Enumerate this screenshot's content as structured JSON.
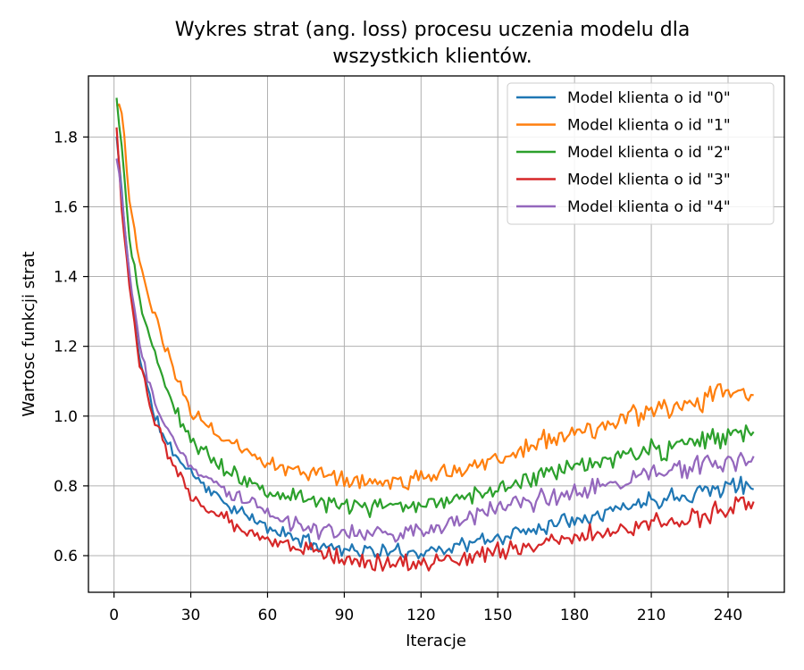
{
  "chart_data": {
    "type": "line",
    "title_lines": [
      "Wykres strat (ang. loss) procesu uczenia modelu dla",
      "wszystkich klientów."
    ],
    "xlabel": "Iteracje",
    "ylabel": "Wartosc funkcji strat",
    "xlim": [
      -10,
      262
    ],
    "ylim": [
      0.495,
      1.975
    ],
    "x_ticks": [
      0,
      30,
      60,
      90,
      120,
      150,
      180,
      210,
      240
    ],
    "y_ticks": [
      0.6,
      0.8,
      1.0,
      1.2,
      1.4,
      1.6,
      1.8
    ],
    "y_tick_labels": [
      "0.6",
      "0.8",
      "1.0",
      "1.2",
      "1.4",
      "1.6",
      "1.8"
    ],
    "grid": true,
    "legend_position": "top-right",
    "x_range": [
      1,
      250
    ],
    "series": [
      {
        "name": "Model klienta o id \"0\"",
        "color": "#1f77b4",
        "anchors": [
          [
            1,
            1.8
          ],
          [
            3,
            1.64
          ],
          [
            6,
            1.4
          ],
          [
            10,
            1.17
          ],
          [
            15,
            1.02
          ],
          [
            20,
            0.93
          ],
          [
            25,
            0.88
          ],
          [
            30,
            0.84
          ],
          [
            40,
            0.77
          ],
          [
            50,
            0.72
          ],
          [
            60,
            0.68
          ],
          [
            75,
            0.64
          ],
          [
            90,
            0.62
          ],
          [
            105,
            0.61
          ],
          [
            120,
            0.61
          ],
          [
            135,
            0.63
          ],
          [
            150,
            0.65
          ],
          [
            165,
            0.68
          ],
          [
            180,
            0.71
          ],
          [
            195,
            0.73
          ],
          [
            210,
            0.76
          ],
          [
            225,
            0.78
          ],
          [
            240,
            0.8
          ],
          [
            250,
            0.8
          ]
        ],
        "noise": 0.012,
        "seed": 11,
        "end_value": 0.79
      },
      {
        "name": "Model klienta o id \"1\"",
        "color": "#ff7f0e",
        "anchors": [
          [
            1,
            1.91
          ],
          [
            3,
            1.88
          ],
          [
            6,
            1.62
          ],
          [
            10,
            1.44
          ],
          [
            15,
            1.3
          ],
          [
            20,
            1.19
          ],
          [
            25,
            1.1
          ],
          [
            30,
            1.02
          ],
          [
            40,
            0.95
          ],
          [
            50,
            0.9
          ],
          [
            60,
            0.87
          ],
          [
            75,
            0.84
          ],
          [
            90,
            0.82
          ],
          [
            105,
            0.81
          ],
          [
            120,
            0.82
          ],
          [
            135,
            0.85
          ],
          [
            150,
            0.88
          ],
          [
            165,
            0.92
          ],
          [
            180,
            0.95
          ],
          [
            195,
            0.98
          ],
          [
            210,
            1.01
          ],
          [
            225,
            1.04
          ],
          [
            240,
            1.07
          ],
          [
            250,
            1.07
          ]
        ],
        "noise": 0.015,
        "seed": 23,
        "end_value": 1.06
      },
      {
        "name": "Model klienta o id \"2\"",
        "color": "#2ca02c",
        "anchors": [
          [
            1,
            1.9
          ],
          [
            3,
            1.78
          ],
          [
            6,
            1.5
          ],
          [
            10,
            1.33
          ],
          [
            15,
            1.2
          ],
          [
            20,
            1.09
          ],
          [
            25,
            1.0
          ],
          [
            30,
            0.93
          ],
          [
            40,
            0.87
          ],
          [
            50,
            0.82
          ],
          [
            60,
            0.79
          ],
          [
            75,
            0.76
          ],
          [
            90,
            0.74
          ],
          [
            105,
            0.74
          ],
          [
            120,
            0.75
          ],
          [
            135,
            0.77
          ],
          [
            150,
            0.79
          ],
          [
            165,
            0.82
          ],
          [
            180,
            0.85
          ],
          [
            195,
            0.88
          ],
          [
            210,
            0.9
          ],
          [
            225,
            0.92
          ],
          [
            240,
            0.94
          ],
          [
            250,
            0.95
          ]
        ],
        "noise": 0.014,
        "seed": 37,
        "end_value": 0.955
      },
      {
        "name": "Model klienta o id \"3\"",
        "color": "#d62728",
        "anchors": [
          [
            1,
            1.83
          ],
          [
            3,
            1.6
          ],
          [
            6,
            1.36
          ],
          [
            10,
            1.15
          ],
          [
            15,
            1.01
          ],
          [
            20,
            0.91
          ],
          [
            25,
            0.83
          ],
          [
            30,
            0.77
          ],
          [
            40,
            0.72
          ],
          [
            50,
            0.68
          ],
          [
            60,
            0.65
          ],
          [
            75,
            0.62
          ],
          [
            90,
            0.59
          ],
          [
            105,
            0.58
          ],
          [
            120,
            0.58
          ],
          [
            135,
            0.59
          ],
          [
            150,
            0.61
          ],
          [
            165,
            0.63
          ],
          [
            180,
            0.65
          ],
          [
            195,
            0.67
          ],
          [
            210,
            0.69
          ],
          [
            225,
            0.71
          ],
          [
            240,
            0.73
          ],
          [
            250,
            0.75
          ]
        ],
        "noise": 0.013,
        "seed": 53,
        "end_value": 0.755
      },
      {
        "name": "Model klienta o id \"4\"",
        "color": "#9467bd",
        "anchors": [
          [
            1,
            1.74
          ],
          [
            3,
            1.64
          ],
          [
            6,
            1.4
          ],
          [
            10,
            1.2
          ],
          [
            15,
            1.07
          ],
          [
            20,
            0.97
          ],
          [
            25,
            0.91
          ],
          [
            30,
            0.86
          ],
          [
            40,
            0.8
          ],
          [
            50,
            0.76
          ],
          [
            60,
            0.72
          ],
          [
            75,
            0.68
          ],
          [
            90,
            0.66
          ],
          [
            105,
            0.66
          ],
          [
            120,
            0.67
          ],
          [
            135,
            0.7
          ],
          [
            150,
            0.73
          ],
          [
            165,
            0.76
          ],
          [
            180,
            0.78
          ],
          [
            195,
            0.81
          ],
          [
            210,
            0.83
          ],
          [
            225,
            0.85
          ],
          [
            240,
            0.87
          ],
          [
            250,
            0.88
          ]
        ],
        "noise": 0.014,
        "seed": 71,
        "end_value": 0.885
      }
    ]
  }
}
